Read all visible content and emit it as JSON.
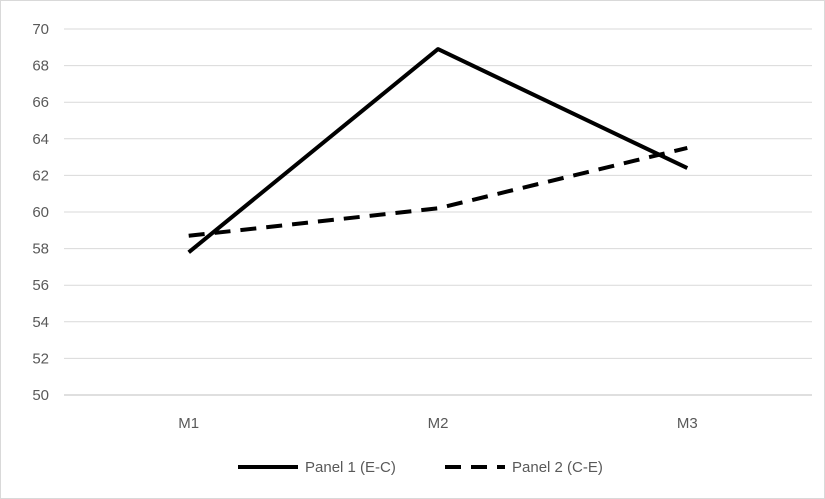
{
  "chart_data": {
    "type": "line",
    "categories": [
      "M1",
      "M2",
      "M3"
    ],
    "series": [
      {
        "name": "Panel 1 (E-C)",
        "values": [
          57.8,
          68.9,
          62.4
        ],
        "color": "#000000",
        "style": "solid"
      },
      {
        "name": "Panel 2 (C-E)",
        "values": [
          58.7,
          60.2,
          63.5
        ],
        "color": "#000000",
        "style": "dashed"
      }
    ],
    "ylim": [
      50,
      70
    ],
    "yticks": [
      50,
      52,
      54,
      56,
      58,
      60,
      62,
      64,
      66,
      68,
      70
    ],
    "title": "",
    "xlabel": "",
    "ylabel": "",
    "grid": "horizontal",
    "legend_position": "bottom",
    "gridline_color": "#d9d9d9",
    "axis_color": "#bfbfbf",
    "text_color": "#595959"
  }
}
